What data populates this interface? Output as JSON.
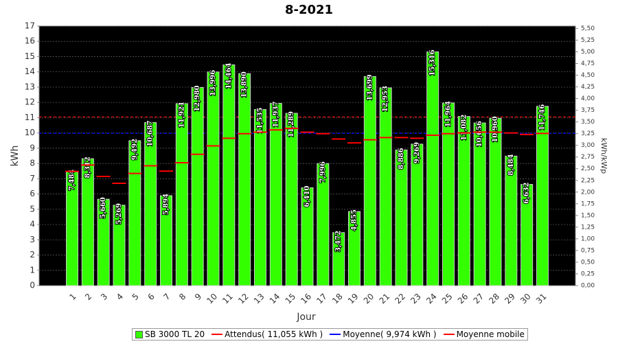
{
  "chart_data": {
    "type": "bar",
    "title": "8-2021",
    "x_label": "Jour",
    "y_label": "kWh",
    "y2_label": "kWh/kWp",
    "categories": [
      "1",
      "2",
      "3",
      "4",
      "5",
      "6",
      "7",
      "8",
      "9",
      "10",
      "11",
      "12",
      "13",
      "14",
      "15",
      "16",
      "17",
      "18",
      "19",
      "20",
      "21",
      "22",
      "23",
      "24",
      "25",
      "26",
      "27",
      "28",
      "29",
      "30",
      "31"
    ],
    "series": [
      {
        "name": "SB 3000 TL 20",
        "color": "#33ff00",
        "values": [
          7.484,
          8.312,
          5.66,
          5.269,
          9.492,
          10.687,
          5.894,
          11.921,
          12.98,
          13.996,
          14.464,
          13.89,
          11.535,
          11.937,
          11.289,
          6.41,
          7.996,
          3.472,
          4.855,
          13.699,
          12.953,
          8.886,
          9.269,
          15.316,
          11.964,
          11.082,
          10.656,
          10.96,
          8.484,
          6.632,
          11.746
        ],
        "value_labels": [
          "7,484",
          "8,312",
          "5,660",
          "5,269",
          "9,492",
          "10,687",
          "5,894",
          "11,921",
          "12,980",
          "13,996",
          "14,464",
          "13,890",
          "11,535",
          "11,937",
          "11,289",
          "6,410",
          "7,996",
          "3,472",
          "4,855",
          "13,699",
          "12,953",
          "8,886",
          "9,269",
          "15,316",
          "11,964",
          "11,082",
          "10,656",
          "10,960",
          "8,484",
          "6,632",
          "11,746"
        ]
      },
      {
        "name": "Moyenne mobile",
        "color": "#ff0000",
        "values": [
          7.48,
          7.9,
          7.15,
          6.7,
          7.35,
          7.85,
          7.5,
          8.05,
          8.6,
          9.15,
          9.65,
          9.95,
          10.05,
          10.2,
          10.3,
          10.05,
          9.95,
          9.6,
          9.35,
          9.55,
          9.7,
          9.7,
          9.65,
          9.85,
          9.95,
          10.0,
          10.05,
          10.05,
          10.0,
          9.9,
          9.97
        ]
      }
    ],
    "reference_lines": [
      {
        "name": "Attendus( 11,055 kWh )",
        "value": 11.055,
        "color": "#ff0000"
      },
      {
        "name": "Moyenne( 9,974 kWh )",
        "value": 9.974,
        "color": "#0000ff"
      }
    ],
    "ylim": [
      0,
      17
    ],
    "yticks": [
      0,
      1,
      2,
      3,
      4,
      5,
      6,
      7,
      8,
      9,
      10,
      11,
      12,
      13,
      14,
      15,
      16,
      17
    ],
    "y2lim": [
      0,
      5.55
    ],
    "y2ticks": [
      {
        "value": 0,
        "label": "0,00"
      },
      {
        "value": 0.25,
        "label": "0,25"
      },
      {
        "value": 0.5,
        "label": "0,50"
      },
      {
        "value": 0.75,
        "label": "0,75"
      },
      {
        "value": 1,
        "label": "1,00"
      },
      {
        "value": 1.25,
        "label": "1,25"
      },
      {
        "value": 1.5,
        "label": "1,50"
      },
      {
        "value": 1.75,
        "label": "1,75"
      },
      {
        "value": 2,
        "label": "2,00"
      },
      {
        "value": 2.25,
        "label": "2,25"
      },
      {
        "value": 2.5,
        "label": "2,50"
      },
      {
        "value": 2.75,
        "label": "2,75"
      },
      {
        "value": 3,
        "label": "3,00"
      },
      {
        "value": 3.25,
        "label": "3,25"
      },
      {
        "value": 3.5,
        "label": "3,50"
      },
      {
        "value": 3.75,
        "label": "3,75"
      },
      {
        "value": 4,
        "label": "4,00"
      },
      {
        "value": 4.25,
        "label": "4,25"
      },
      {
        "value": 4.5,
        "label": "4,50"
      },
      {
        "value": 4.75,
        "label": "4,75"
      },
      {
        "value": 5,
        "label": "5,00"
      },
      {
        "value": 5.25,
        "label": "5,25"
      },
      {
        "value": 5.5,
        "label": "5,50"
      }
    ],
    "grid": true,
    "background": "#000000"
  }
}
